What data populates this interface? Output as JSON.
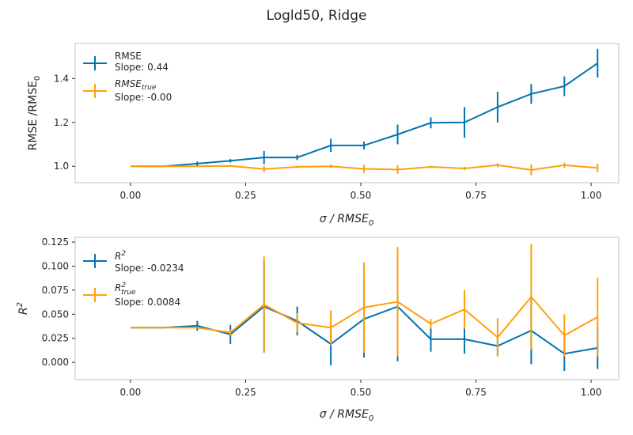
{
  "chart_data": [
    {
      "type": "line",
      "title": "Logld50, Ridge",
      "xlabel_main": "σ / RMSE",
      "xlabel_sub": "0",
      "ylabel_main": "RMSE /RMSE",
      "ylabel_sub": "0",
      "xlim": [
        -0.12,
        1.06
      ],
      "ylim": [
        0.925,
        1.56
      ],
      "xticks": [
        0.0,
        0.25,
        0.5,
        0.75,
        1.0
      ],
      "xtick_labels": [
        "0.00",
        "0.25",
        "0.50",
        "0.75",
        "1.00"
      ],
      "yticks": [
        1.0,
        1.2,
        1.4
      ],
      "ytick_labels": [
        "1.0",
        "1.2",
        "1.4"
      ],
      "legend_position": "top-left",
      "x": [
        0.0,
        0.072,
        0.145,
        0.217,
        0.29,
        0.362,
        0.435,
        0.507,
        0.58,
        0.652,
        0.725,
        0.797,
        0.87,
        0.942,
        1.014
      ],
      "series": [
        {
          "name": "RMSE",
          "slope_label": "Slope: 0.44",
          "color": "#0173b2",
          "values": [
            1.0,
            1.0,
            1.012,
            1.025,
            1.04,
            1.04,
            1.095,
            1.095,
            1.145,
            1.198,
            1.2,
            1.27,
            1.33,
            1.365,
            1.47
          ],
          "errors": [
            0.0,
            0.0,
            0.01,
            0.008,
            0.03,
            0.012,
            0.03,
            0.018,
            0.045,
            0.025,
            0.07,
            0.07,
            0.045,
            0.045,
            0.065
          ]
        },
        {
          "name": "RMSE",
          "name_sub": "true",
          "slope_label": "Slope: -0.00",
          "color": "#ff9f0a",
          "values": [
            1.0,
            1.0,
            1.0,
            1.002,
            0.987,
            0.997,
            1.0,
            0.988,
            0.985,
            0.997,
            0.99,
            1.005,
            0.983,
            1.005,
            0.992
          ],
          "errors": [
            0.0,
            0.0,
            0.0,
            0.004,
            0.015,
            0.005,
            0.008,
            0.018,
            0.02,
            0.005,
            0.008,
            0.01,
            0.025,
            0.012,
            0.02
          ]
        }
      ]
    },
    {
      "type": "line",
      "title": "",
      "xlabel_main": "σ / RMSE",
      "xlabel_sub": "0",
      "ylabel_main": "R",
      "ylabel_sup": "2",
      "xlim": [
        -0.12,
        1.06
      ],
      "ylim": [
        -0.018,
        0.13
      ],
      "xticks": [
        0.0,
        0.25,
        0.5,
        0.75,
        1.0
      ],
      "xtick_labels": [
        "0.00",
        "0.25",
        "0.50",
        "0.75",
        "1.00"
      ],
      "yticks": [
        0.0,
        0.025,
        0.05,
        0.075,
        0.1,
        0.125
      ],
      "ytick_labels": [
        "0.000",
        "0.025",
        "0.050",
        "0.075",
        "0.100",
        "0.125"
      ],
      "legend_position": "top-left",
      "x": [
        0.0,
        0.072,
        0.145,
        0.217,
        0.29,
        0.362,
        0.435,
        0.507,
        0.58,
        0.652,
        0.725,
        0.797,
        0.87,
        0.942,
        1.014
      ],
      "series": [
        {
          "name": "R",
          "name_sup": "2",
          "slope_label": "Slope: -0.0234",
          "color": "#0173b2",
          "values": [
            0.036,
            0.036,
            0.038,
            0.029,
            0.058,
            0.043,
            0.019,
            0.045,
            0.058,
            0.024,
            0.024,
            0.017,
            0.033,
            0.009,
            0.015
          ],
          "errors": [
            0.0,
            0.0,
            0.005,
            0.01,
            0.048,
            0.015,
            0.022,
            0.04,
            0.057,
            0.013,
            0.015,
            0.01,
            0.035,
            0.018,
            0.022
          ]
        },
        {
          "name": "R",
          "name_sup": "2",
          "name_sub": "true",
          "slope_label": "Slope: 0.0084",
          "color": "#ff9f0a",
          "values": [
            0.036,
            0.036,
            0.036,
            0.031,
            0.06,
            0.041,
            0.036,
            0.057,
            0.063,
            0.04,
            0.055,
            0.026,
            0.068,
            0.028,
            0.047
          ],
          "errors": [
            0.0,
            0.0,
            0.0,
            0.003,
            0.05,
            0.01,
            0.018,
            0.047,
            0.057,
            0.005,
            0.02,
            0.02,
            0.055,
            0.022,
            0.041
          ]
        }
      ]
    }
  ]
}
